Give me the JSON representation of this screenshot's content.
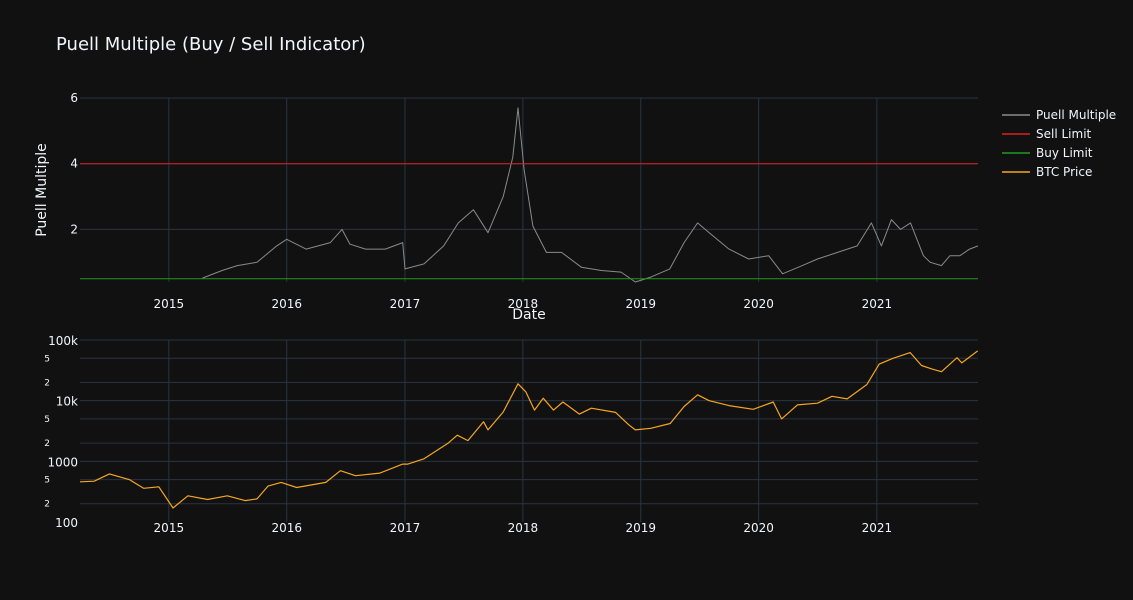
{
  "title": "Puell Multiple (Buy / Sell Indicator)",
  "colors": {
    "background": "#111111",
    "grid": "#283442",
    "text": "#f2f5fa",
    "puell": "#8a8a8a",
    "sell": "#e11d1d",
    "buy": "#1f9a1f",
    "btc": "#f5a623"
  },
  "legend": [
    {
      "label": "Puell Multiple",
      "color": "#8a8a8a"
    },
    {
      "label": "Sell Limit",
      "color": "#e11d1d"
    },
    {
      "label": "Buy Limit",
      "color": "#1f9a1f"
    },
    {
      "label": "BTC Price",
      "color": "#f5a623"
    }
  ],
  "chart_data": [
    {
      "type": "line",
      "xlabel": "Date",
      "ylabel": "Puell Multiple",
      "xlim": [
        "2014-04-01",
        "2021-11-10"
      ],
      "ylim": [
        0.4,
        6
      ],
      "x_ticks": [
        "2015",
        "2016",
        "2017",
        "2018",
        "2019",
        "2020",
        "2021"
      ],
      "y_ticks": [
        "2",
        "4",
        "6"
      ],
      "series": [
        {
          "name": "Puell Multiple",
          "x": [
            "2015-04-15",
            "2015-06-15",
            "2015-08-01",
            "2015-10-01",
            "2015-12-01",
            "2016-01-01",
            "2016-03-01",
            "2016-05-15",
            "2016-06-20",
            "2016-07-15",
            "2016-09-01",
            "2016-11-01",
            "2016-12-25",
            "2017-01-01",
            "2017-03-01",
            "2017-05-01",
            "2017-06-15",
            "2017-08-01",
            "2017-09-15",
            "2017-11-01",
            "2017-12-01",
            "2017-12-17",
            "2018-01-05",
            "2018-02-01",
            "2018-03-15",
            "2018-05-01",
            "2018-07-01",
            "2018-09-01",
            "2018-11-01",
            "2018-12-15",
            "2019-02-01",
            "2019-04-01",
            "2019-05-15",
            "2019-06-26",
            "2019-08-01",
            "2019-10-01",
            "2019-12-01",
            "2020-02-01",
            "2020-03-15",
            "2020-05-15",
            "2020-07-01",
            "2020-09-01",
            "2020-11-01",
            "2020-12-15",
            "2021-01-15",
            "2021-02-15",
            "2021-03-15",
            "2021-04-15",
            "2021-05-25",
            "2021-06-15",
            "2021-07-20",
            "2021-08-15",
            "2021-09-15",
            "2021-10-15",
            "2021-11-10"
          ],
          "y": [
            0.52,
            0.75,
            0.9,
            1.0,
            1.5,
            1.7,
            1.4,
            1.6,
            2.0,
            1.55,
            1.4,
            1.4,
            1.6,
            0.8,
            0.95,
            1.5,
            2.2,
            2.6,
            1.9,
            3.0,
            4.2,
            5.7,
            3.8,
            2.1,
            1.3,
            1.3,
            0.85,
            0.75,
            0.7,
            0.4,
            0.55,
            0.8,
            1.6,
            2.2,
            1.9,
            1.4,
            1.1,
            1.2,
            0.65,
            0.9,
            1.1,
            1.3,
            1.5,
            2.2,
            1.5,
            2.3,
            2.0,
            2.2,
            1.2,
            1.0,
            0.9,
            1.2,
            1.2,
            1.4,
            1.5
          ]
        },
        {
          "name": "Sell Limit",
          "x": [
            "2014-04-01",
            "2021-11-10"
          ],
          "y": [
            4,
            4
          ]
        },
        {
          "name": "Buy Limit",
          "x": [
            "2014-04-01",
            "2021-11-10"
          ],
          "y": [
            0.5,
            0.5
          ]
        }
      ]
    },
    {
      "type": "line",
      "scale": "log",
      "xlim": [
        "2014-04-01",
        "2021-11-10"
      ],
      "ylim": [
        100,
        100000
      ],
      "x_ticks": [
        "2015",
        "2016",
        "2017",
        "2018",
        "2019",
        "2020",
        "2021"
      ],
      "y_ticks_major": [
        "100",
        "1000",
        "10k",
        "100k"
      ],
      "y_ticks_minor": [
        "2",
        "5"
      ],
      "series": [
        {
          "name": "BTC Price",
          "x": [
            "2014-04-01",
            "2014-05-15",
            "2014-07-01",
            "2014-09-01",
            "2014-10-15",
            "2014-12-01",
            "2015-01-14",
            "2015-03-01",
            "2015-05-01",
            "2015-07-01",
            "2015-08-25",
            "2015-10-01",
            "2015-11-04",
            "2015-12-15",
            "2016-02-01",
            "2016-05-01",
            "2016-06-15",
            "2016-08-01",
            "2016-10-15",
            "2016-12-25",
            "2017-01-10",
            "2017-03-01",
            "2017-05-15",
            "2017-06-12",
            "2017-07-15",
            "2017-09-01",
            "2017-09-15",
            "2017-11-01",
            "2017-12-17",
            "2018-01-10",
            "2018-02-06",
            "2018-03-05",
            "2018-04-06",
            "2018-05-05",
            "2018-06-25",
            "2018-08-01",
            "2018-10-15",
            "2018-11-25",
            "2018-12-15",
            "2019-02-01",
            "2019-04-02",
            "2019-05-15",
            "2019-06-26",
            "2019-08-01",
            "2019-10-01",
            "2019-12-15",
            "2020-02-15",
            "2020-03-12",
            "2020-04-30",
            "2020-07-01",
            "2020-08-15",
            "2020-10-01",
            "2020-12-01",
            "2021-01-08",
            "2021-02-20",
            "2021-04-14",
            "2021-05-19",
            "2021-06-22",
            "2021-07-20",
            "2021-09-06",
            "2021-09-21",
            "2021-11-09"
          ],
          "y": [
            460,
            470,
            620,
            500,
            360,
            380,
            170,
            270,
            235,
            270,
            225,
            240,
            390,
            450,
            370,
            450,
            700,
            580,
            640,
            900,
            900,
            1100,
            2000,
            2700,
            2200,
            4500,
            3300,
            6500,
            19000,
            14000,
            7000,
            11000,
            7000,
            9500,
            6000,
            7500,
            6400,
            4000,
            3300,
            3500,
            4200,
            8000,
            12500,
            10000,
            8300,
            7200,
            9500,
            5000,
            8500,
            9100,
            11800,
            10700,
            18500,
            40000,
            50000,
            62000,
            38000,
            33000,
            30000,
            51000,
            42000,
            66000
          ]
        }
      ]
    }
  ]
}
